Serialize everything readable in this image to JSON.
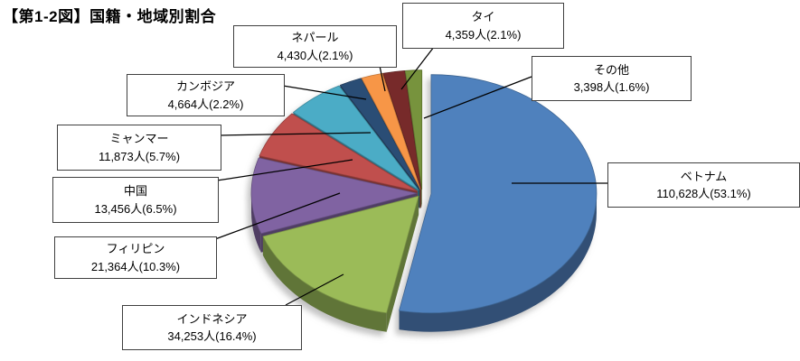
{
  "title": "【第1-2図】国籍・地域別割合",
  "chart_data": {
    "type": "pie",
    "style": "3d-exploded-pie",
    "title": "国籍・地域別割合",
    "unit": "人",
    "legend": false,
    "start_angle_deg": 0,
    "clockwise": true,
    "slices": [
      {
        "id": "vietnam",
        "name": "ベトナム",
        "value": 110628,
        "percent": 53.1,
        "label": "110,628人(53.1%)",
        "color": "#4F81BD"
      },
      {
        "id": "indonesia",
        "name": "インドネシア",
        "value": 34253,
        "percent": 16.4,
        "label": "34,253人(16.4%)",
        "color": "#9BBB59"
      },
      {
        "id": "philippines",
        "name": "フィリピン",
        "value": 21364,
        "percent": 10.3,
        "label": "21,364人(10.3%)",
        "color": "#8064A2"
      },
      {
        "id": "china",
        "name": "中国",
        "value": 13456,
        "percent": 6.5,
        "label": "13,456人(6.5%)",
        "color": "#C0504D"
      },
      {
        "id": "myanmar",
        "name": "ミャンマー",
        "value": 11873,
        "percent": 5.7,
        "label": "11,873人(5.7%)",
        "color": "#4BACC6"
      },
      {
        "id": "cambodia",
        "name": "カンボジア",
        "value": 4664,
        "percent": 2.2,
        "label": "4,664人(2.2%)",
        "color": "#2C4D75"
      },
      {
        "id": "nepal",
        "name": "ネパール",
        "value": 4430,
        "percent": 2.1,
        "label": "4,430人(2.1%)",
        "color": "#F79646"
      },
      {
        "id": "thailand",
        "name": "タイ",
        "value": 4359,
        "percent": 2.1,
        "label": "4,359人(2.1%)",
        "color": "#772C2A"
      },
      {
        "id": "others",
        "name": "その他",
        "value": 3398,
        "percent": 1.6,
        "label": "3,398人(1.6%)",
        "color": "#77933C"
      }
    ]
  }
}
